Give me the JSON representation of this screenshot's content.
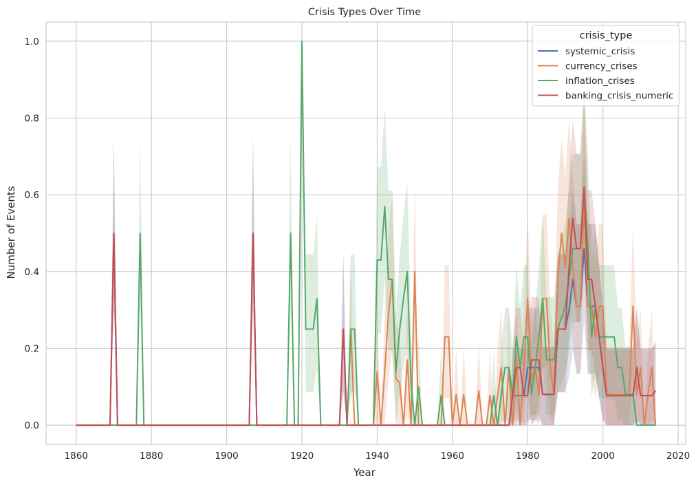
{
  "chart_data": {
    "type": "line",
    "title": "Crisis Types Over Time",
    "xlabel": "Year",
    "ylabel": "Number of Events",
    "xlim": [
      1852,
      2022
    ],
    "ylim": [
      -0.05,
      1.05
    ],
    "xticks": [
      1860,
      1880,
      1900,
      1920,
      1940,
      1960,
      1980,
      2000,
      2020
    ],
    "yticks": [
      0.0,
      0.2,
      0.4,
      0.6,
      0.8,
      1.0
    ],
    "xtick_labels": [
      "1860",
      "1880",
      "1900",
      "1920",
      "1940",
      "1960",
      "1980",
      "2000",
      "2020"
    ],
    "ytick_labels": [
      "0.0",
      "0.2",
      "0.4",
      "0.6",
      "0.8",
      "1.0"
    ],
    "grid": true,
    "confidence_bands": true,
    "legend": {
      "title": "crisis_type",
      "placement": "top-right",
      "entries": [
        "systemic_crisis",
        "currency_crises",
        "inflation_crises",
        "banking_crisis_numeric"
      ]
    },
    "series": [
      {
        "name": "systemic_crisis",
        "color": "#4c72b0",
        "points": [
          [
            1860,
            0
          ],
          [
            1869,
            0
          ],
          [
            1870,
            0.5
          ],
          [
            1871,
            0
          ],
          [
            1906,
            0
          ],
          [
            1907,
            0.5
          ],
          [
            1908,
            0
          ],
          [
            1930,
            0
          ],
          [
            1931,
            0.25
          ],
          [
            1932,
            0
          ],
          [
            1975,
            0
          ],
          [
            1976,
            0.077
          ],
          [
            1979,
            0.077
          ],
          [
            1980,
            0.15
          ],
          [
            1981,
            0.15
          ],
          [
            1983,
            0.15
          ],
          [
            1984,
            0.08
          ],
          [
            1987,
            0.08
          ],
          [
            1988,
            0.25
          ],
          [
            1990,
            0.25
          ],
          [
            1991,
            0.3
          ],
          [
            1992,
            0.38
          ],
          [
            1993,
            0.31
          ],
          [
            1994,
            0.31
          ],
          [
            1995,
            0.46
          ],
          [
            1996,
            0.31
          ],
          [
            1998,
            0.31
          ],
          [
            1999,
            0.23
          ],
          [
            2000,
            0.15
          ],
          [
            2001,
            0.077
          ],
          [
            2008,
            0.077
          ],
          [
            2009,
            0.15
          ],
          [
            2010,
            0.077
          ],
          [
            2013,
            0.077
          ],
          [
            2014,
            0.09
          ]
        ]
      },
      {
        "name": "currency_crises",
        "color": "#dd8452",
        "points": [
          [
            1860,
            0
          ],
          [
            1932,
            0
          ],
          [
            1933,
            0.25
          ],
          [
            1934,
            0
          ],
          [
            1939,
            0
          ],
          [
            1940,
            0.14
          ],
          [
            1941,
            0
          ],
          [
            1942,
            0.14
          ],
          [
            1943,
            0.29
          ],
          [
            1944,
            0.38
          ],
          [
            1945,
            0.12
          ],
          [
            1946,
            0.11
          ],
          [
            1947,
            0
          ],
          [
            1948,
            0.17
          ],
          [
            1949,
            0
          ],
          [
            1950,
            0.4
          ],
          [
            1951,
            0
          ],
          [
            1957,
            0
          ],
          [
            1958,
            0.23
          ],
          [
            1959,
            0.23
          ],
          [
            1960,
            0
          ],
          [
            1961,
            0.08
          ],
          [
            1962,
            0
          ],
          [
            1963,
            0.08
          ],
          [
            1964,
            0
          ],
          [
            1966,
            0
          ],
          [
            1967,
            0.09
          ],
          [
            1968,
            0
          ],
          [
            1969,
            0
          ],
          [
            1970,
            0.077
          ],
          [
            1971,
            0
          ],
          [
            1972,
            0.077
          ],
          [
            1973,
            0.15
          ],
          [
            1974,
            0
          ],
          [
            1975,
            0.15
          ],
          [
            1976,
            0
          ],
          [
            1977,
            0.18
          ],
          [
            1978,
            0
          ],
          [
            1979,
            0.15
          ],
          [
            1980,
            0.33
          ],
          [
            1981,
            0.12
          ],
          [
            1982,
            0.15
          ],
          [
            1983,
            0.08
          ],
          [
            1984,
            0.33
          ],
          [
            1985,
            0.33
          ],
          [
            1986,
            0.15
          ],
          [
            1987,
            0.08
          ],
          [
            1988,
            0.38
          ],
          [
            1989,
            0.5
          ],
          [
            1990,
            0.41
          ],
          [
            1991,
            0.54
          ],
          [
            1992,
            0.41
          ],
          [
            1993,
            0.31
          ],
          [
            1994,
            0.31
          ],
          [
            1995,
            0.58
          ],
          [
            1996,
            0.31
          ],
          [
            1997,
            0.31
          ],
          [
            1998,
            0.23
          ],
          [
            1999,
            0.31
          ],
          [
            2000,
            0.31
          ],
          [
            2001,
            0.08
          ],
          [
            2005,
            0.08
          ],
          [
            2006,
            0.08
          ],
          [
            2007,
            0.08
          ],
          [
            2008,
            0.31
          ],
          [
            2009,
            0.08
          ],
          [
            2010,
            0.15
          ],
          [
            2011,
            0
          ],
          [
            2012,
            0.08
          ],
          [
            2013,
            0.15
          ],
          [
            2014,
            0
          ]
        ]
      },
      {
        "name": "inflation_crises",
        "color": "#55a868",
        "points": [
          [
            1860,
            0
          ],
          [
            1876,
            0
          ],
          [
            1877,
            0.5
          ],
          [
            1878,
            0
          ],
          [
            1916,
            0
          ],
          [
            1917,
            0.5
          ],
          [
            1918,
            0
          ],
          [
            1919,
            0
          ],
          [
            1920,
            1.0
          ],
          [
            1921,
            0.25
          ],
          [
            1923,
            0.25
          ],
          [
            1924,
            0.33
          ],
          [
            1925,
            0
          ],
          [
            1932,
            0
          ],
          [
            1933,
            0.25
          ],
          [
            1934,
            0.25
          ],
          [
            1935,
            0
          ],
          [
            1939,
            0
          ],
          [
            1940,
            0.43
          ],
          [
            1941,
            0.43
          ],
          [
            1942,
            0.57
          ],
          [
            1943,
            0.38
          ],
          [
            1944,
            0.38
          ],
          [
            1945,
            0.14
          ],
          [
            1946,
            0.25
          ],
          [
            1947,
            0.33
          ],
          [
            1948,
            0.4
          ],
          [
            1949,
            0.11
          ],
          [
            1950,
            0
          ],
          [
            1951,
            0.1
          ],
          [
            1952,
            0
          ],
          [
            1956,
            0
          ],
          [
            1957,
            0.077
          ],
          [
            1958,
            0
          ],
          [
            1970,
            0
          ],
          [
            1971,
            0.077
          ],
          [
            1972,
            0
          ],
          [
            1973,
            0.08
          ],
          [
            1974,
            0.15
          ],
          [
            1975,
            0.15
          ],
          [
            1976,
            0.077
          ],
          [
            1977,
            0.23
          ],
          [
            1978,
            0.15
          ],
          [
            1979,
            0.23
          ],
          [
            1980,
            0.23
          ],
          [
            1981,
            0.08
          ],
          [
            1982,
            0.15
          ],
          [
            1983,
            0.23
          ],
          [
            1984,
            0.33
          ],
          [
            1985,
            0.17
          ],
          [
            1987,
            0.17
          ],
          [
            1988,
            0.25
          ],
          [
            1990,
            0.31
          ],
          [
            1991,
            0.38
          ],
          [
            1992,
            0.46
          ],
          [
            1994,
            0.46
          ],
          [
            1995,
            0.62
          ],
          [
            1996,
            0.46
          ],
          [
            1997,
            0.23
          ],
          [
            1998,
            0.31
          ],
          [
            1999,
            0.23
          ],
          [
            2000,
            0.23
          ],
          [
            2001,
            0.23
          ],
          [
            2003,
            0.23
          ],
          [
            2004,
            0.15
          ],
          [
            2005,
            0.15
          ],
          [
            2006,
            0.08
          ],
          [
            2008,
            0.08
          ],
          [
            2009,
            0
          ],
          [
            2014,
            0
          ]
        ]
      },
      {
        "name": "banking_crisis_numeric",
        "color": "#c44e52",
        "points": [
          [
            1860,
            0
          ],
          [
            1869,
            0
          ],
          [
            1870,
            0.5
          ],
          [
            1871,
            0
          ],
          [
            1906,
            0
          ],
          [
            1907,
            0.5
          ],
          [
            1908,
            0
          ],
          [
            1930,
            0
          ],
          [
            1931,
            0.25
          ],
          [
            1932,
            0
          ],
          [
            1975,
            0
          ],
          [
            1976,
            0.077
          ],
          [
            1977,
            0.15
          ],
          [
            1978,
            0.15
          ],
          [
            1979,
            0.077
          ],
          [
            1980,
            0.077
          ],
          [
            1981,
            0.17
          ],
          [
            1983,
            0.17
          ],
          [
            1984,
            0.08
          ],
          [
            1987,
            0.08
          ],
          [
            1988,
            0.25
          ],
          [
            1990,
            0.25
          ],
          [
            1991,
            0.41
          ],
          [
            1992,
            0.54
          ],
          [
            1993,
            0.46
          ],
          [
            1994,
            0.46
          ],
          [
            1995,
            0.62
          ],
          [
            1996,
            0.38
          ],
          [
            1997,
            0.38
          ],
          [
            1998,
            0.31
          ],
          [
            1999,
            0.23
          ],
          [
            2000,
            0.15
          ],
          [
            2001,
            0.077
          ],
          [
            2008,
            0.077
          ],
          [
            2009,
            0.15
          ],
          [
            2010,
            0.077
          ],
          [
            2013,
            0.077
          ],
          [
            2014,
            0.09
          ]
        ]
      }
    ]
  }
}
